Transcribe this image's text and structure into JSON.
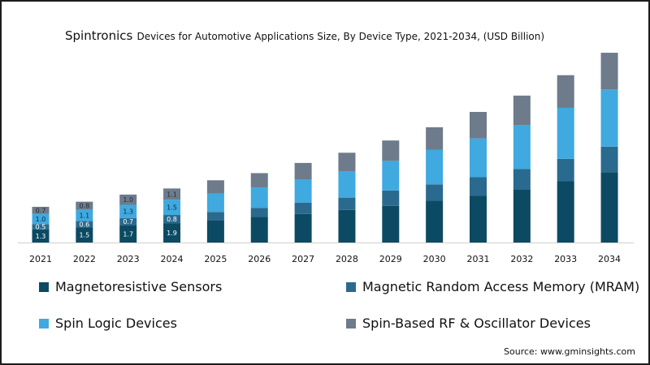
{
  "title_bold": "Spintronics",
  "title_rest": "Devices for Automotive Applications Size, By Device Type, 2021-2034, (USD Billion)",
  "source": "Source: www.gminsights.com",
  "colors": {
    "magnetoresistive": "#0c4a63",
    "mram": "#2a6a8e",
    "spin_logic": "#3fa9e0",
    "rf_oscillator": "#6d7b8b"
  },
  "chart_data": {
    "type": "bar",
    "stacked": true,
    "title": "Spintronics Devices for Automotive Applications Size, By Device Type, 2021-2034, (USD Billion)",
    "categories": [
      "2021",
      "2022",
      "2023",
      "2024",
      "2025",
      "2026",
      "2027",
      "2028",
      "2029",
      "2030",
      "2031",
      "2032",
      "2033",
      "2034"
    ],
    "series": [
      {
        "name": "Magnetoresistive Sensors",
        "color_key": "magnetoresistive",
        "values": [
          1.3,
          1.5,
          1.7,
          1.9,
          2.2,
          2.5,
          2.8,
          3.2,
          3.6,
          4.1,
          4.6,
          5.2,
          6.0,
          6.9
        ],
        "labels": [
          "1.3",
          "1.5",
          "1.7",
          "1.9",
          null,
          null,
          null,
          null,
          null,
          null,
          null,
          null,
          null,
          null
        ]
      },
      {
        "name": "Magnetic Random Access Memory (MRAM)",
        "color_key": "mram",
        "values": [
          0.5,
          0.6,
          0.7,
          0.8,
          0.8,
          0.9,
          1.1,
          1.2,
          1.5,
          1.6,
          1.8,
          2.0,
          2.2,
          2.5
        ],
        "labels": [
          "0.5",
          "0.6",
          "0.7",
          "0.8",
          null,
          null,
          null,
          null,
          null,
          null,
          null,
          null,
          null,
          null
        ]
      },
      {
        "name": "Spin Logic Devices",
        "color_key": "spin_logic",
        "values": [
          1.0,
          1.1,
          1.3,
          1.5,
          1.8,
          2.0,
          2.3,
          2.6,
          2.9,
          3.4,
          3.8,
          4.3,
          5.0,
          5.6
        ],
        "labels": [
          "1.0",
          "1.1",
          "1.3",
          "1.5",
          null,
          null,
          null,
          null,
          null,
          null,
          null,
          null,
          null,
          null
        ]
      },
      {
        "name": "Spin-Based RF & Oscillator Devices",
        "color_key": "rf_oscillator",
        "values": [
          0.7,
          0.8,
          1.0,
          1.1,
          1.3,
          1.4,
          1.6,
          1.8,
          2.0,
          2.2,
          2.6,
          2.9,
          3.2,
          3.6
        ],
        "labels": [
          "0.7",
          "0.8",
          "1.0",
          "1.1",
          null,
          null,
          null,
          null,
          null,
          null,
          null,
          null,
          null,
          null
        ]
      }
    ],
    "xlabel": "",
    "ylabel": "",
    "ylim": [
      0,
      19
    ],
    "grid": false,
    "legend_position": "bottom"
  }
}
